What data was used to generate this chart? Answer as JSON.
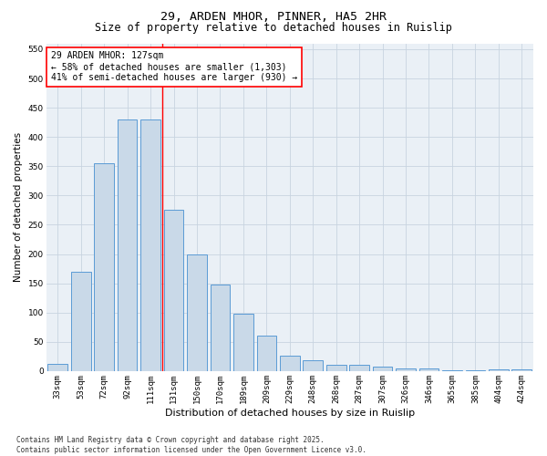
{
  "title_line1": "29, ARDEN MHOR, PINNER, HA5 2HR",
  "title_line2": "Size of property relative to detached houses in Ruislip",
  "xlabel": "Distribution of detached houses by size in Ruislip",
  "ylabel": "Number of detached properties",
  "categories": [
    "33sqm",
    "53sqm",
    "72sqm",
    "92sqm",
    "111sqm",
    "131sqm",
    "150sqm",
    "170sqm",
    "189sqm",
    "209sqm",
    "229sqm",
    "248sqm",
    "268sqm",
    "287sqm",
    "307sqm",
    "326sqm",
    "346sqm",
    "365sqm",
    "385sqm",
    "404sqm",
    "424sqm"
  ],
  "values": [
    12,
    170,
    355,
    430,
    430,
    275,
    200,
    148,
    98,
    60,
    27,
    19,
    11,
    11,
    7,
    5,
    5,
    2,
    1,
    3,
    3
  ],
  "bar_color": "#c9d9e8",
  "bar_edge_color": "#5b9bd5",
  "vline_index": 5,
  "vline_color": "red",
  "annotation_text": "29 ARDEN MHOR: 127sqm\n← 58% of detached houses are smaller (1,303)\n41% of semi-detached houses are larger (930) →",
  "annotation_box_color": "red",
  "ylim": [
    0,
    560
  ],
  "yticks": [
    0,
    50,
    100,
    150,
    200,
    250,
    300,
    350,
    400,
    450,
    500,
    550
  ],
  "grid_color": "#c8d4e0",
  "bg_color": "#eaf0f6",
  "footnote": "Contains HM Land Registry data © Crown copyright and database right 2025.\nContains public sector information licensed under the Open Government Licence v3.0.",
  "title_fontsize": 9.5,
  "subtitle_fontsize": 8.5,
  "xlabel_fontsize": 8,
  "ylabel_fontsize": 7.5,
  "tick_fontsize": 6.5,
  "annot_fontsize": 7,
  "footnote_fontsize": 5.5
}
